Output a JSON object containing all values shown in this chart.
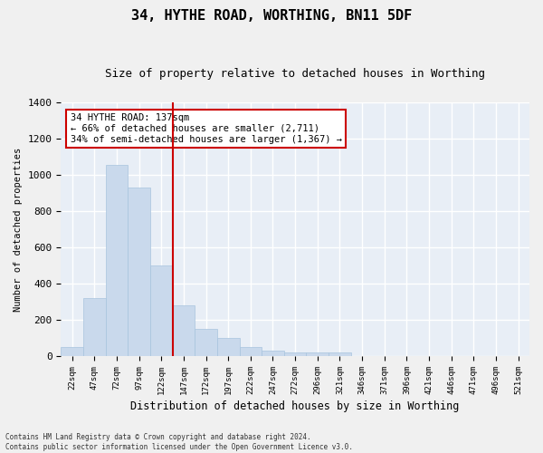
{
  "title": "34, HYTHE ROAD, WORTHING, BN11 5DF",
  "subtitle": "Size of property relative to detached houses in Worthing",
  "xlabel": "Distribution of detached houses by size in Worthing",
  "ylabel": "Number of detached properties",
  "bar_color": "#c9d9ec",
  "bar_edgecolor": "#a8c4de",
  "background_color": "#e8eef6",
  "grid_color": "#ffffff",
  "categories": [
    "22sqm",
    "47sqm",
    "72sqm",
    "97sqm",
    "122sqm",
    "147sqm",
    "172sqm",
    "197sqm",
    "222sqm",
    "247sqm",
    "272sqm",
    "296sqm",
    "321sqm",
    "346sqm",
    "371sqm",
    "396sqm",
    "421sqm",
    "446sqm",
    "471sqm",
    "496sqm",
    "521sqm"
  ],
  "values": [
    50,
    320,
    1055,
    930,
    500,
    280,
    150,
    100,
    50,
    30,
    20,
    20,
    20,
    0,
    0,
    0,
    0,
    0,
    0,
    0,
    0
  ],
  "ylim": [
    0,
    1400
  ],
  "yticks": [
    0,
    200,
    400,
    600,
    800,
    1000,
    1200,
    1400
  ],
  "red_line_index": 4.5,
  "annotation_text": "34 HYTHE ROAD: 137sqm\n← 66% of detached houses are smaller (2,711)\n34% of semi-detached houses are larger (1,367) →",
  "annotation_box_color": "#ffffff",
  "annotation_box_edgecolor": "#cc0000",
  "footer_line1": "Contains HM Land Registry data © Crown copyright and database right 2024.",
  "footer_line2": "Contains public sector information licensed under the Open Government Licence v3.0."
}
